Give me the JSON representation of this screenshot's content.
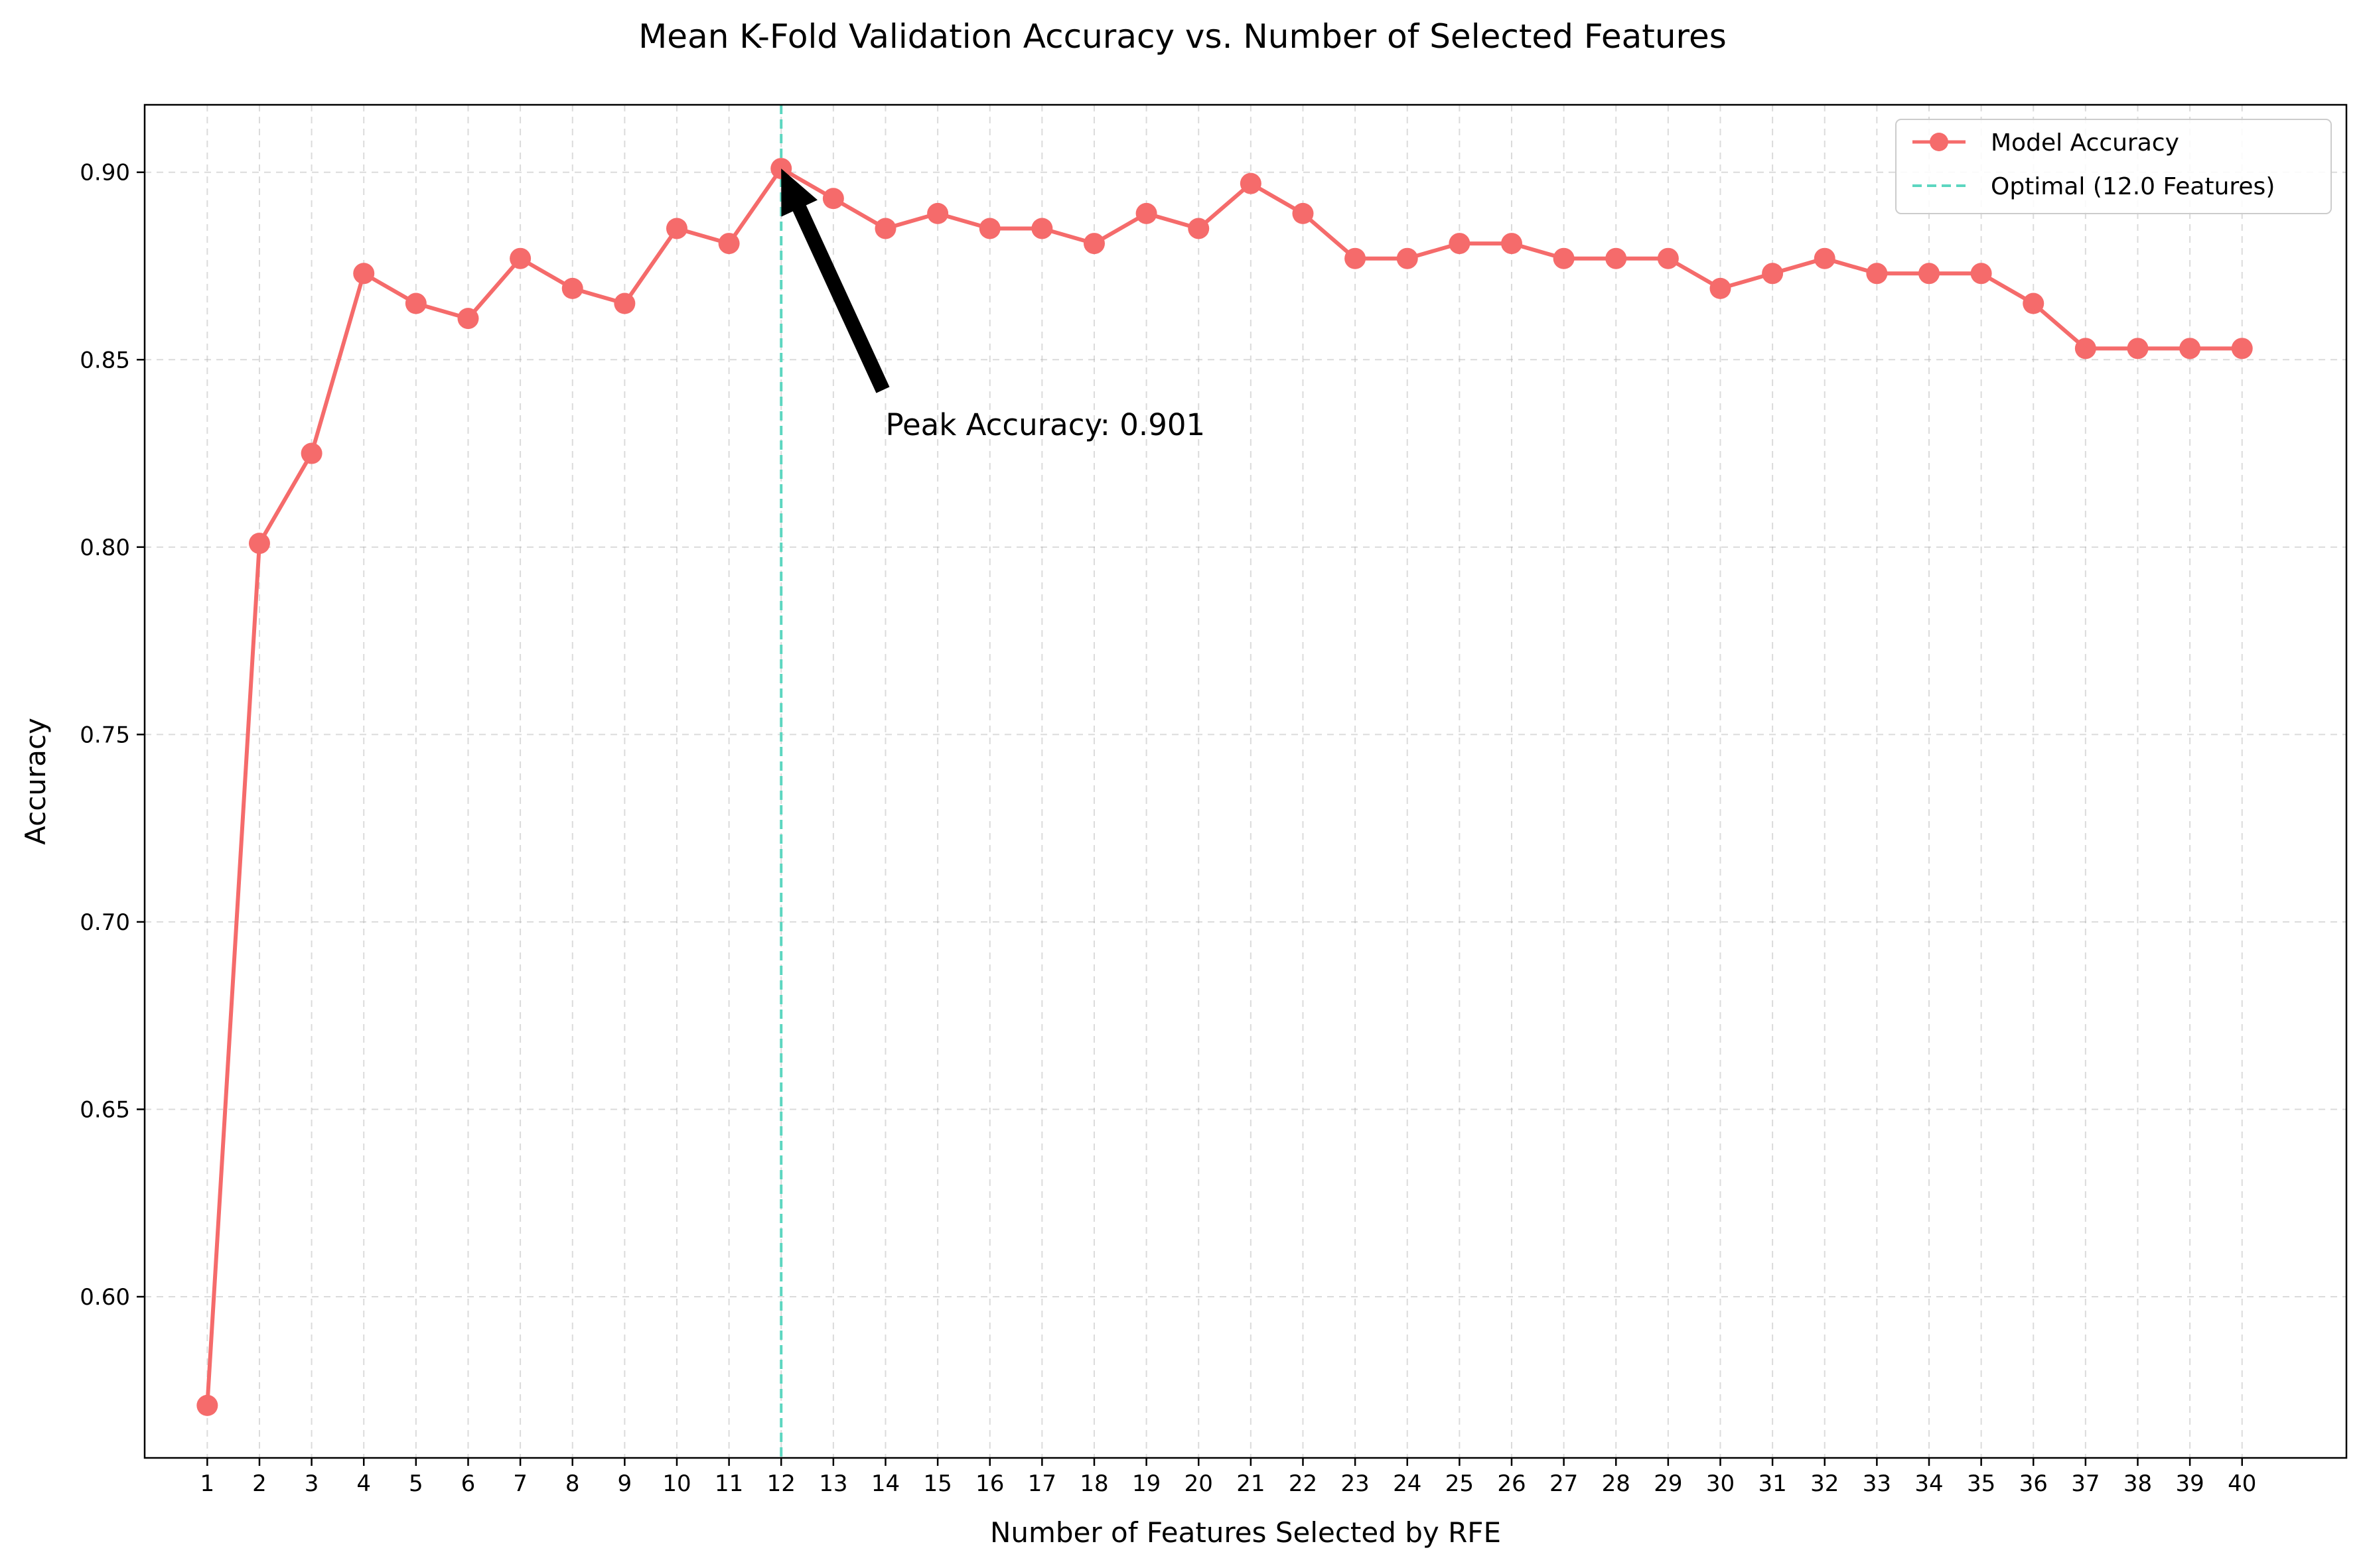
{
  "chart_data": {
    "type": "line",
    "title": "Mean K-Fold Validation Accuracy vs. Number of Selected Features",
    "xlabel": "Number of Features Selected by RFE",
    "ylabel": "Accuracy",
    "x": [
      1,
      2,
      3,
      4,
      5,
      6,
      7,
      8,
      9,
      10,
      11,
      12,
      13,
      14,
      15,
      16,
      17,
      18,
      19,
      20,
      21,
      22,
      23,
      24,
      25,
      26,
      27,
      28,
      29,
      30,
      31,
      32,
      33,
      34,
      35,
      36,
      37,
      38,
      39,
      40
    ],
    "x_ticks": [
      "1",
      "2",
      "3",
      "4",
      "5",
      "6",
      "7",
      "8",
      "9",
      "10",
      "11",
      "12",
      "13",
      "14",
      "15",
      "16",
      "17",
      "18",
      "19",
      "20",
      "21",
      "22",
      "23",
      "24",
      "25",
      "26",
      "27",
      "28",
      "29",
      "30",
      "31",
      "32",
      "33",
      "34",
      "35",
      "36",
      "37",
      "38",
      "39",
      "40"
    ],
    "y_ticks": [
      "0.60",
      "0.65",
      "0.70",
      "0.75",
      "0.80",
      "0.85",
      "0.90"
    ],
    "xlim": [
      -0.2,
      42.0
    ],
    "ylim": [
      0.557,
      0.918
    ],
    "grid": true,
    "legend_position": "top-right",
    "series": [
      {
        "name": "Model Accuracy",
        "color": "#f56b6b",
        "marker": "circle",
        "values": [
          0.571,
          0.801,
          0.825,
          0.873,
          0.865,
          0.861,
          0.877,
          0.869,
          0.865,
          0.885,
          0.881,
          0.901,
          0.893,
          0.885,
          0.889,
          0.885,
          0.885,
          0.881,
          0.889,
          0.885,
          0.897,
          0.889,
          0.877,
          0.877,
          0.881,
          0.881,
          0.877,
          0.877,
          0.877,
          0.869,
          0.873,
          0.877,
          0.873,
          0.873,
          0.873,
          0.865,
          0.853,
          0.853,
          0.853,
          0.853
        ]
      }
    ],
    "reference_line": {
      "name": "Optimal (12.0 Features)",
      "x": 12,
      "color": "#5cd6c0",
      "style": "dashed"
    },
    "annotation": {
      "text": "Peak Accuracy: 0.901",
      "point": [
        12,
        0.901
      ],
      "text_at": [
        14,
        0.832
      ]
    }
  }
}
